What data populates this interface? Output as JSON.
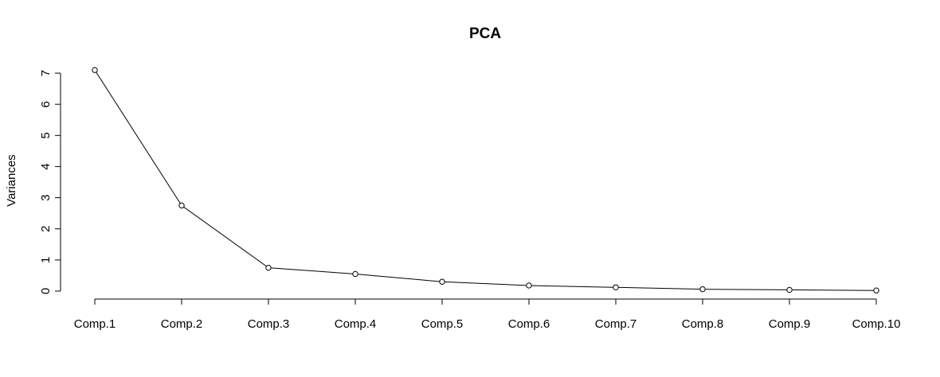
{
  "chart_data": {
    "type": "line",
    "title": "PCA",
    "xlabel": "",
    "ylabel": "Variances",
    "categories": [
      "Comp.1",
      "Comp.2",
      "Comp.3",
      "Comp.4",
      "Comp.5",
      "Comp.6",
      "Comp.7",
      "Comp.8",
      "Comp.9",
      "Comp.10"
    ],
    "values": [
      7.1,
      2.75,
      0.75,
      0.55,
      0.3,
      0.18,
      0.12,
      0.06,
      0.04,
      0.02
    ],
    "yticks": [
      "0",
      "1",
      "2",
      "3",
      "4",
      "5",
      "6",
      "7"
    ],
    "ylim": [
      0,
      7
    ],
    "grid": false,
    "markers": "open-circle"
  }
}
